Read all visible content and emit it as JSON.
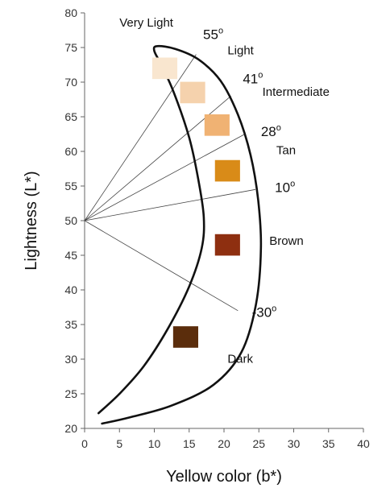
{
  "chart_data": {
    "type": "scatter",
    "xlabel": "Yellow color (b*)",
    "ylabel": "Lightness (L*)",
    "xlim": [
      0,
      40
    ],
    "ylim": [
      20,
      80
    ],
    "xticks": [
      "0",
      "5",
      "10",
      "15",
      "20",
      "25",
      "30",
      "35",
      "40"
    ],
    "yticks": [
      "20",
      "25",
      "30",
      "35",
      "40",
      "45",
      "50",
      "55",
      "60",
      "65",
      "70",
      "75",
      "80"
    ],
    "grid": false,
    "swatches": [
      {
        "b": 11.5,
        "L": 72,
        "color": "#f9e6cf"
      },
      {
        "b": 15.5,
        "L": 68.5,
        "color": "#f5d2ad"
      },
      {
        "b": 19,
        "L": 63.8,
        "color": "#f0b273"
      },
      {
        "b": 20.5,
        "L": 57.2,
        "color": "#d98b18"
      },
      {
        "b": 20.5,
        "L": 46.5,
        "color": "#8e2f10"
      },
      {
        "b": 14.5,
        "L": 33.2,
        "color": "#5b2d0c"
      }
    ],
    "rays": {
      "origin": {
        "b": 0,
        "L": 50
      },
      "ends": [
        {
          "b": 16,
          "L": 74
        },
        {
          "b": 21,
          "L": 68
        },
        {
          "b": 23,
          "L": 62.5
        },
        {
          "b": 24.5,
          "L": 54.5
        },
        {
          "b": 22,
          "L": 37
        }
      ]
    },
    "angle_labels": [
      {
        "value": "55",
        "sup": "o",
        "b": 17,
        "L": 76.2
      },
      {
        "value": "41",
        "sup": "o",
        "b": 22.7,
        "L": 69.8
      },
      {
        "value": "28",
        "sup": "o",
        "b": 25.3,
        "L": 62.2
      },
      {
        "value": "10",
        "sup": "o",
        "b": 27.3,
        "L": 54.1
      },
      {
        "value": "-30",
        "sup": "o",
        "b": 24,
        "L": 36.1
      }
    ],
    "region_labels": [
      {
        "text": "Very Light",
        "b": 5,
        "L": 78
      },
      {
        "text": "Light",
        "b": 20.5,
        "L": 74
      },
      {
        "text": "Intermediate",
        "b": 25.5,
        "L": 68
      },
      {
        "text": "Tan",
        "b": 27.5,
        "L": 59.6
      },
      {
        "text": "Brown",
        "b": 26.5,
        "L": 46.5
      },
      {
        "text": "Dark",
        "b": 20.5,
        "L": 29.5
      }
    ],
    "boundary": [
      [
        2,
        22.2
      ],
      [
        5,
        25
      ],
      [
        8.5,
        29
      ],
      [
        12,
        34.5
      ],
      [
        15,
        40.5
      ],
      [
        16.8,
        46
      ],
      [
        17.1,
        50.5
      ],
      [
        16.3,
        56
      ],
      [
        15,
        62
      ],
      [
        12.8,
        68.5
      ],
      [
        11,
        72.5
      ],
      [
        10,
        74.5
      ],
      [
        10.4,
        75.2
      ],
      [
        13,
        74.8
      ],
      [
        16.3,
        73.3
      ],
      [
        19.5,
        70.2
      ],
      [
        22,
        65.3
      ],
      [
        23.8,
        59.5
      ],
      [
        24.9,
        53
      ],
      [
        25.3,
        46
      ],
      [
        24.6,
        38
      ],
      [
        22.5,
        31
      ],
      [
        18.5,
        26.3
      ],
      [
        12.5,
        23.3
      ],
      [
        6.5,
        21.6
      ],
      [
        2.5,
        20.7
      ]
    ]
  }
}
